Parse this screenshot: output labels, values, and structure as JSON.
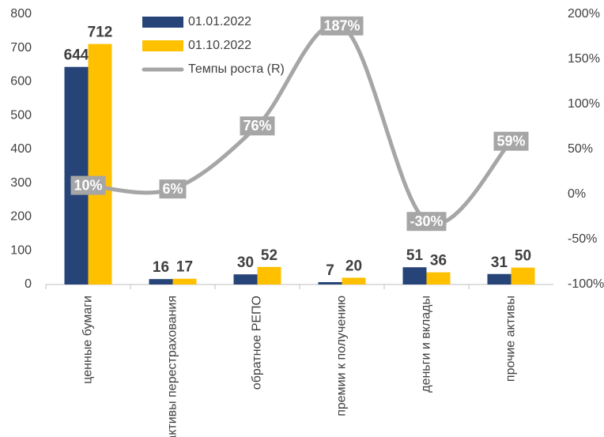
{
  "chart_data": {
    "type": "bar+line",
    "categories": [
      "ценные бумаги",
      "активы перестрахования",
      "обратное РЕПО",
      "премии к получению",
      "деньги и вклады",
      "прочие активы"
    ],
    "series": [
      {
        "name": "01.01.2022",
        "type": "bar",
        "color": "#264478",
        "values": [
          644,
          16,
          30,
          7,
          51,
          31
        ]
      },
      {
        "name": "01.10.2022",
        "type": "bar",
        "color": "#FFC000",
        "values": [
          712,
          17,
          52,
          20,
          36,
          50
        ]
      },
      {
        "name": "Темпы роста (R)",
        "type": "line",
        "axis": "y2",
        "color": "#A6A6A6",
        "values": [
          10,
          6,
          76,
          187,
          -30,
          59
        ],
        "value_labels": [
          "10%",
          "6%",
          "76%",
          "187%",
          "-30%",
          "59%"
        ]
      }
    ],
    "ylim": [
      0,
      800
    ],
    "yticks": [
      0,
      100,
      200,
      300,
      400,
      500,
      600,
      700,
      800
    ],
    "y2lim": [
      -100,
      200
    ],
    "y2ticks": [
      {
        "value": -100,
        "label": "-100%"
      },
      {
        "value": -50,
        "label": "-50%"
      },
      {
        "value": 0,
        "label": "0%"
      },
      {
        "value": 50,
        "label": "50%"
      },
      {
        "value": 100,
        "label": "100%"
      },
      {
        "value": 150,
        "label": "150%"
      },
      {
        "value": 200,
        "label": "200%"
      }
    ],
    "legend": "top"
  }
}
